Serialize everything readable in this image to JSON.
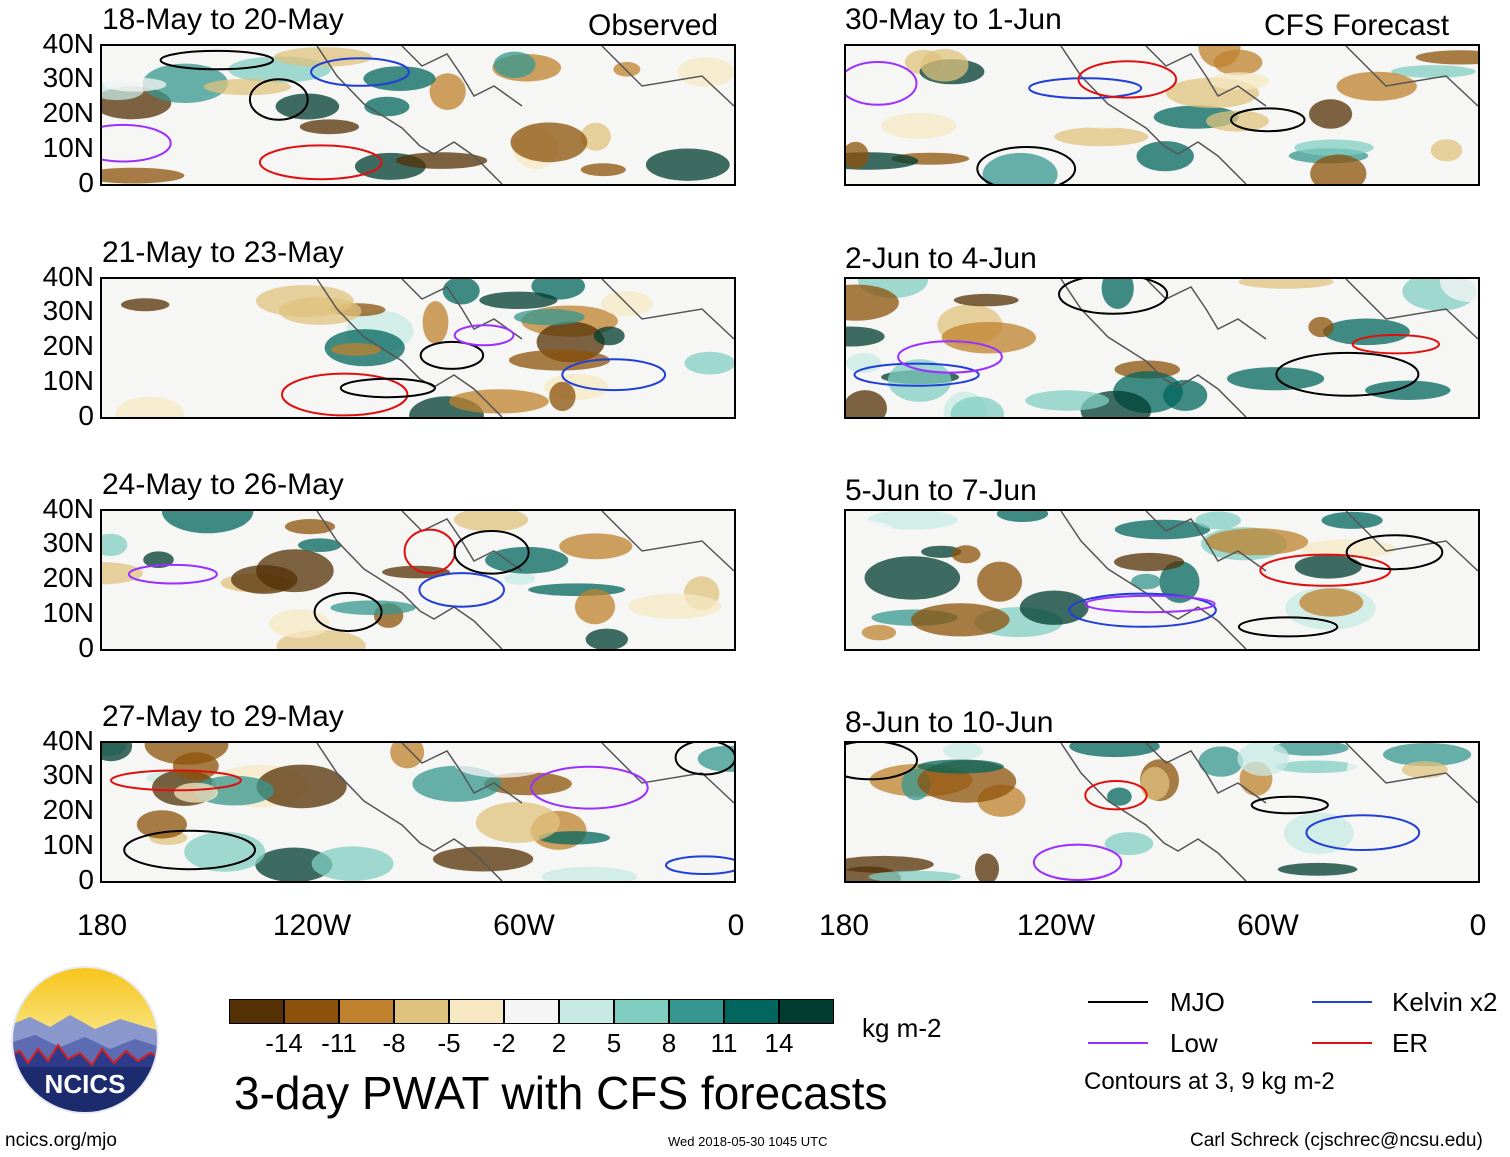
{
  "headers": {
    "observed": "Observed",
    "forecast": "CFS Forecast"
  },
  "panels": [
    {
      "title": "18-May to 20-May",
      "group": "observed"
    },
    {
      "title": "21-May to 23-May",
      "group": "observed"
    },
    {
      "title": "24-May to 26-May",
      "group": "observed"
    },
    {
      "title": "27-May to 29-May",
      "group": "observed"
    },
    {
      "title": "30-May to 1-Jun",
      "group": "forecast"
    },
    {
      "title": "2-Jun to 4-Jun",
      "group": "forecast"
    },
    {
      "title": "5-Jun to 7-Jun",
      "group": "forecast"
    },
    {
      "title": "8-Jun to 10-Jun",
      "group": "forecast"
    }
  ],
  "y_labels": [
    "40N",
    "30N",
    "20N",
    "10N",
    "0"
  ],
  "x_labels": [
    "180",
    "120W",
    "60W",
    "0"
  ],
  "colorbar": {
    "colors": [
      "#543005",
      "#8c510a",
      "#bf812d",
      "#dfc27d",
      "#f6e8c3",
      "#f5f5f5",
      "#c7eae5",
      "#80cdc1",
      "#35978f",
      "#01665e",
      "#003c30"
    ],
    "ticks": [
      "-14",
      "-11",
      "-8",
      "-5",
      "-2",
      "2",
      "5",
      "8",
      "11",
      "14"
    ],
    "unit": "kg m-2"
  },
  "legend": {
    "items": [
      {
        "label": "MJO",
        "color": "#000000"
      },
      {
        "label": "Kelvin x2",
        "color": "#1f3fd8"
      },
      {
        "label": "Low",
        "color": "#9b30ff"
      },
      {
        "label": "ER",
        "color": "#e01010"
      }
    ],
    "note": "Contours at 3, 9 kg m-2"
  },
  "main_title": "3-day PWAT with CFS forecasts",
  "footer": {
    "left": "ncics.org/mjo",
    "center": "Wed 2018-05-30 1045 UTC",
    "right": "Carl Schreck (cjschrec@ncsu.edu)"
  },
  "logo": {
    "text": "NCICS"
  }
}
